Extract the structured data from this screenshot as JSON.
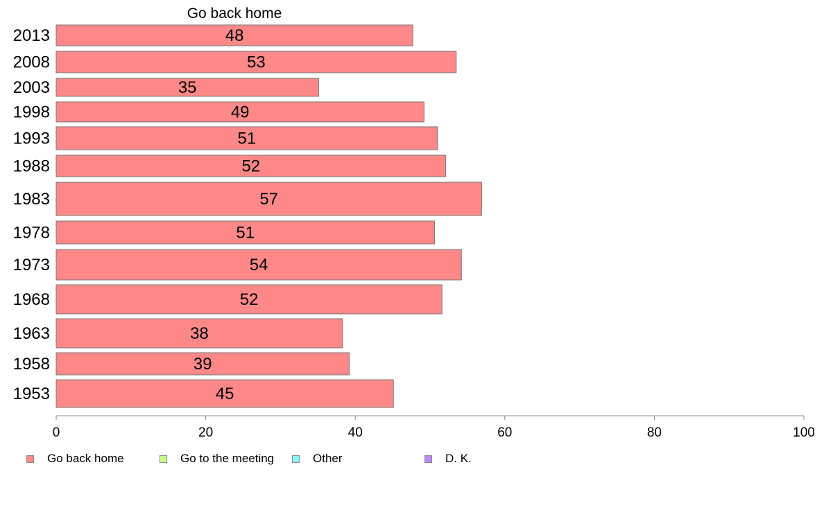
{
  "chart_data": {
    "type": "bar",
    "orientation": "horizontal",
    "stacked": true,
    "title": "Go back home",
    "categories": [
      "2013",
      "2008",
      "2003",
      "1998",
      "1993",
      "1988",
      "1983",
      "1978",
      "1973",
      "1968",
      "1963",
      "1958",
      "1953"
    ],
    "series": [
      {
        "name": "Go back home",
        "color": "#ff8888",
        "values": [
          47.7,
          53.5,
          35.1,
          49.2,
          51.0,
          52.1,
          56.9,
          50.6,
          54.2,
          51.6,
          38.3,
          39.2,
          45.1
        ],
        "labels": [
          "48",
          "53",
          "35",
          "49",
          "51",
          "52",
          "57",
          "51",
          "54",
          "52",
          "38",
          "39",
          "45"
        ]
      }
    ],
    "xlim": [
      0,
      100
    ],
    "xticks": [
      "0",
      "20",
      "40",
      "60",
      "80",
      "100"
    ],
    "xlabel": "",
    "ylabel": "",
    "grid": false,
    "legend_position": "bottom"
  },
  "legend": [
    {
      "label": "Go back home",
      "color": "#ff8888"
    },
    {
      "label": "Go to the meeting",
      "color": "#ccff88"
    },
    {
      "label": "Other",
      "color": "#88ffff"
    },
    {
      "label": "D. K.",
      "color": "#bb88ff"
    }
  ]
}
